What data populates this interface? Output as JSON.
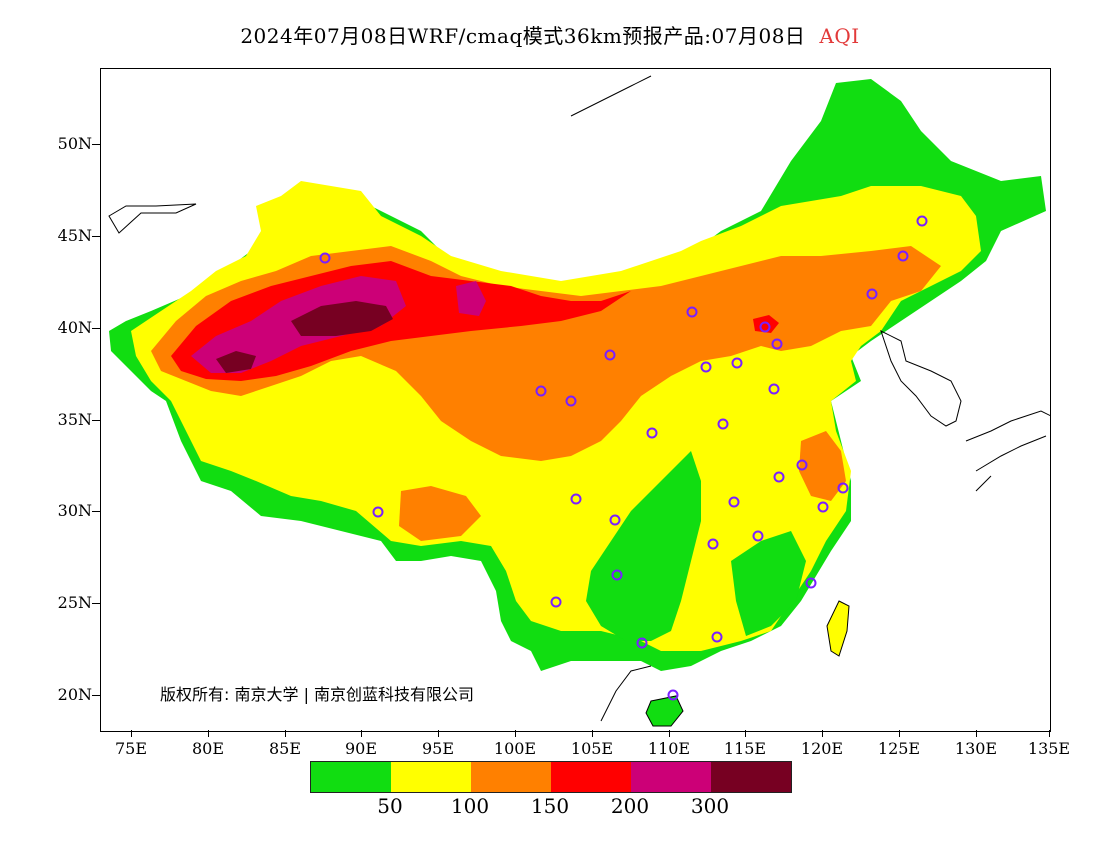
{
  "header": {
    "title": "2024年07月08日WRF/cmaq模式36km预报产品:07月08日",
    "variable": "AQI",
    "variable_color": "#e23a3a"
  },
  "map": {
    "lat_labels": [
      "50N",
      "45N",
      "40N",
      "35N",
      "30N",
      "25N",
      "20N"
    ],
    "lon_labels": [
      "75E",
      "80E",
      "85E",
      "90E",
      "95E",
      "100E",
      "105E",
      "110E",
      "115E",
      "120E",
      "125E",
      "130E",
      "135E"
    ],
    "copyright": "版权所有: 南京大学 | 南京创蓝科技有限公司"
  },
  "legend": {
    "colors": [
      "#11dd11",
      "#ffff00",
      "#ff8000",
      "#ff0000",
      "#cc0077",
      "#770022"
    ],
    "labels": [
      "50",
      "100",
      "150",
      "200",
      "300"
    ]
  }
}
